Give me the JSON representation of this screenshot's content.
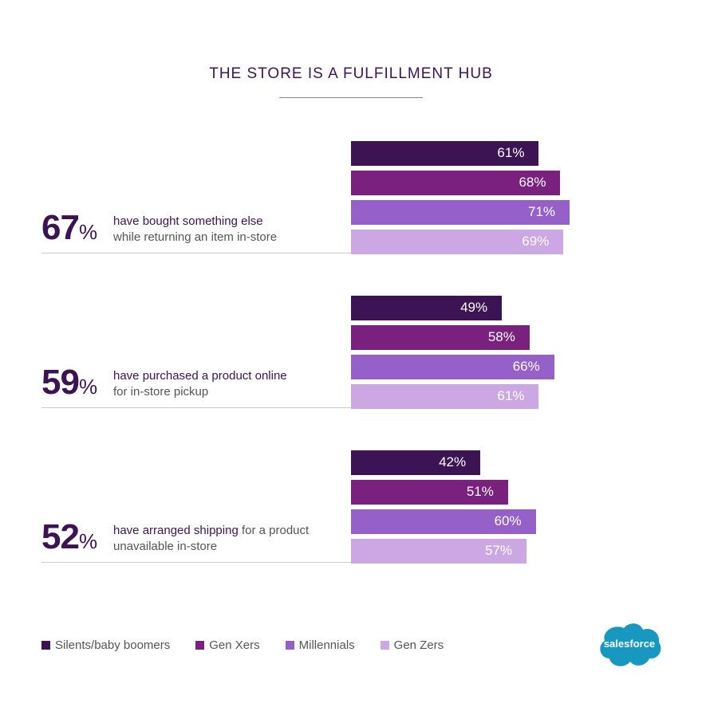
{
  "chart_data": {
    "type": "bar",
    "orientation": "horizontal",
    "title": "THE STORE IS A FULFILLMENT HUB",
    "legend_position": "bottom-left",
    "grid": false,
    "xlim": [
      0,
      100
    ],
    "series_names": [
      "Silents/baby boomers",
      "Gen Xers",
      "Millennials",
      "Gen Zers"
    ],
    "colors": [
      "#3d1453",
      "#7a2180",
      "#9560c8",
      "#cba8e3"
    ],
    "groups": [
      {
        "headline": "67",
        "pct_sign": "%",
        "line1": "have bought something else",
        "line2": "while returning an item in-store",
        "values": [
          61,
          68,
          71,
          69
        ]
      },
      {
        "headline": "59",
        "pct_sign": "%",
        "line1": "have purchased a product online",
        "line2": "for in-store pickup",
        "values": [
          49,
          58,
          66,
          61
        ]
      },
      {
        "headline": "52",
        "pct_sign": "%",
        "line1_bold": "have arranged shipping",
        "line1_rest": " for a product",
        "line2": "unavailable in-store",
        "values": [
          42,
          51,
          60,
          57
        ]
      }
    ]
  },
  "logo": {
    "text": "salesforce",
    "color": "#1798c1"
  }
}
